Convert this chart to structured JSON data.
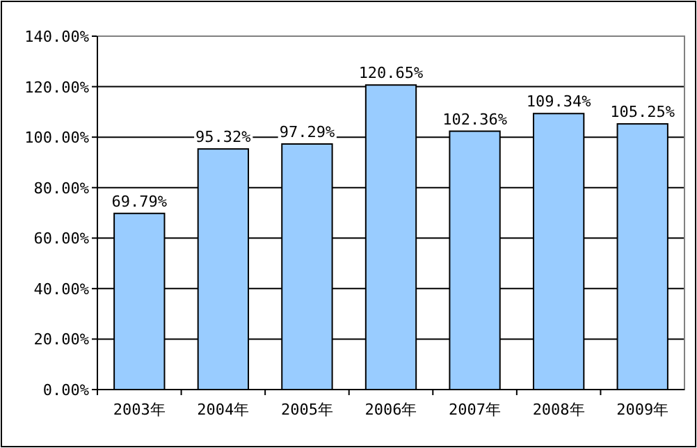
{
  "chart_data": {
    "type": "bar",
    "categories": [
      "2003年",
      "2004年",
      "2005年",
      "2006年",
      "2007年",
      "2008年",
      "2009年"
    ],
    "values": [
      69.79,
      95.32,
      97.29,
      120.65,
      102.36,
      109.34,
      105.25
    ],
    "color": "#99ccff",
    "ylim": [
      0,
      140
    ],
    "yticks": [
      {
        "value": 0,
        "label": "0.00%"
      },
      {
        "value": 20,
        "label": "20.00%"
      },
      {
        "value": 40,
        "label": "40.00%"
      },
      {
        "value": 60,
        "label": "60.00%"
      },
      {
        "value": 80,
        "label": "80.00%"
      },
      {
        "value": 100,
        "label": "100.00%"
      },
      {
        "value": 120,
        "label": "120.00%"
      },
      {
        "value": 140,
        "label": "140.00%"
      }
    ],
    "value_labels": [
      "69.79%",
      "95.32%",
      "97.29%",
      "120.65%",
      "102.36%",
      "109.34%",
      "105.25%"
    ],
    "grid": "y"
  }
}
